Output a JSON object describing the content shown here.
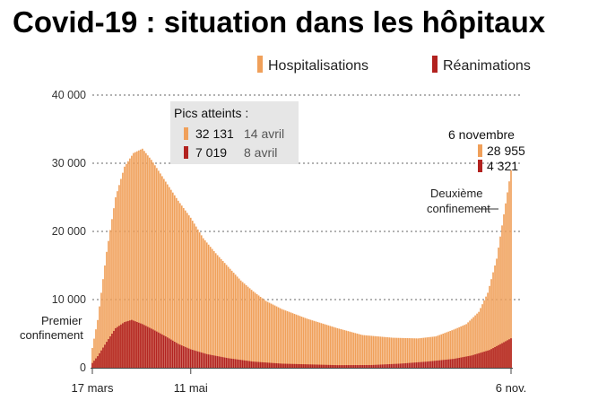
{
  "chart_data": {
    "type": "bar",
    "title": "Covid-19 : situation dans les hôpitaux",
    "ylim": [
      0,
      40000
    ],
    "yticks": [
      {
        "value": 40000,
        "label": "40 000"
      },
      {
        "value": 30000,
        "label": "30 000"
      },
      {
        "value": 20000,
        "label": "20 000"
      },
      {
        "value": 10000,
        "label": "10 000"
      },
      {
        "value": 0,
        "label": "0"
      }
    ],
    "date_start": "2020-03-17",
    "date_end": "2020-11-06",
    "xticks": [
      {
        "date": "2020-03-17",
        "label": "17 mars"
      },
      {
        "date": "2020-05-11",
        "label": "11 mai"
      },
      {
        "date": "2020-11-06",
        "label": "6 nov."
      }
    ],
    "series": [
      {
        "name": "Hospitalisations",
        "color": "#f0a05a",
        "points": [
          [
            "2020-03-17",
            2900
          ],
          [
            "2020-03-20",
            7000
          ],
          [
            "2020-03-25",
            17000
          ],
          [
            "2020-03-30",
            25000
          ],
          [
            "2020-04-04",
            29500
          ],
          [
            "2020-04-09",
            31500
          ],
          [
            "2020-04-14",
            32131
          ],
          [
            "2020-04-19",
            30500
          ],
          [
            "2020-04-24",
            28500
          ],
          [
            "2020-04-29",
            26500
          ],
          [
            "2020-05-04",
            24500
          ],
          [
            "2020-05-11",
            22000
          ],
          [
            "2020-05-18",
            19000
          ],
          [
            "2020-05-25",
            16800
          ],
          [
            "2020-06-01",
            14800
          ],
          [
            "2020-06-08",
            12800
          ],
          [
            "2020-06-15",
            11200
          ],
          [
            "2020-06-22",
            9800
          ],
          [
            "2020-07-01",
            8600
          ],
          [
            "2020-07-15",
            7200
          ],
          [
            "2020-08-01",
            5800
          ],
          [
            "2020-08-15",
            4800
          ],
          [
            "2020-09-01",
            4400
          ],
          [
            "2020-09-15",
            4300
          ],
          [
            "2020-09-25",
            4600
          ],
          [
            "2020-10-05",
            5600
          ],
          [
            "2020-10-12",
            6400
          ],
          [
            "2020-10-19",
            8200
          ],
          [
            "2020-10-24",
            11000
          ],
          [
            "2020-10-29",
            16000
          ],
          [
            "2020-11-02",
            22500
          ],
          [
            "2020-11-06",
            28955
          ]
        ]
      },
      {
        "name": "Réanimations",
        "color": "#b2221f",
        "points": [
          [
            "2020-03-17",
            700
          ],
          [
            "2020-03-20",
            1700
          ],
          [
            "2020-03-25",
            3800
          ],
          [
            "2020-03-30",
            5800
          ],
          [
            "2020-04-04",
            6700
          ],
          [
            "2020-04-08",
            7019
          ],
          [
            "2020-04-14",
            6400
          ],
          [
            "2020-04-20",
            5600
          ],
          [
            "2020-04-27",
            4600
          ],
          [
            "2020-05-04",
            3500
          ],
          [
            "2020-05-11",
            2700
          ],
          [
            "2020-05-20",
            2000
          ],
          [
            "2020-06-01",
            1400
          ],
          [
            "2020-06-15",
            900
          ],
          [
            "2020-07-01",
            600
          ],
          [
            "2020-08-01",
            380
          ],
          [
            "2020-08-20",
            400
          ],
          [
            "2020-09-05",
            600
          ],
          [
            "2020-09-20",
            900
          ],
          [
            "2020-10-05",
            1300
          ],
          [
            "2020-10-15",
            1800
          ],
          [
            "2020-10-25",
            2600
          ],
          [
            "2020-11-01",
            3600
          ],
          [
            "2020-11-06",
            4321
          ]
        ]
      }
    ],
    "peaks": {
      "title": "Pics atteints :",
      "items": [
        {
          "value": "32 131",
          "date": "14 avril",
          "color": "#f0a05a"
        },
        {
          "value": "7 019",
          "date": "8 avril",
          "color": "#b2221f"
        }
      ]
    },
    "latest": {
      "date": "6 novembre",
      "items": [
        {
          "value": "28 955",
          "color": "#f0a05a"
        },
        {
          "value": "4 321",
          "color": "#b2221f"
        }
      ]
    },
    "annotations": {
      "first": [
        "Premier",
        "confinement"
      ],
      "second": [
        "Deuxième",
        "confinement"
      ]
    },
    "grid": true,
    "legend_position": "top-right"
  }
}
